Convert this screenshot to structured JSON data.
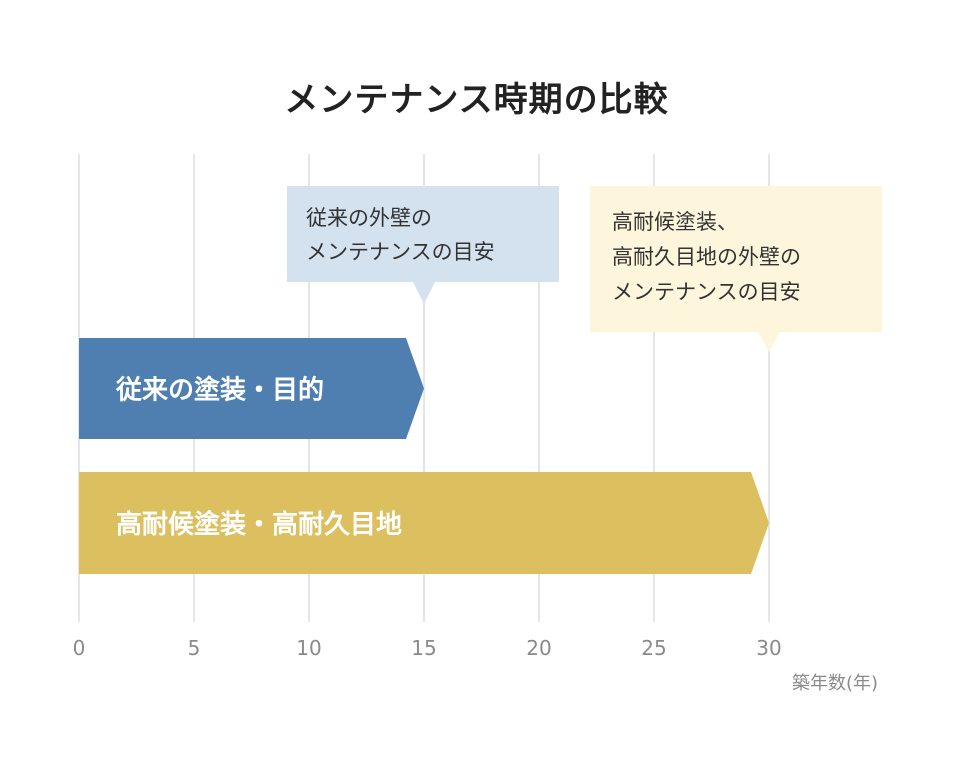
{
  "chart_data": {
    "type": "bar",
    "orientation": "horizontal",
    "title": "メンテナンス時期の比較",
    "xlabel": "築年数(年)",
    "ylabel": "",
    "xlim": [
      0,
      30
    ],
    "x_ticks": [
      "0",
      "5",
      "10",
      "15",
      "20",
      "25",
      "30"
    ],
    "grid": true,
    "series": [
      {
        "label": "従来の塗装・目的",
        "start": 0,
        "end": 15,
        "color": "#4f7fb0"
      },
      {
        "label": "高耐候塗装・高耐久目地",
        "start": 0,
        "end": 30,
        "color": "#dcbf5f"
      }
    ],
    "annotations": [
      {
        "lines": [
          "従来の外壁の",
          "メンテナンスの目安"
        ],
        "x": 15,
        "color": "#d4e1ef"
      },
      {
        "lines": [
          "高耐候塗装、",
          "高耐久目地の外壁の",
          "メンテナンスの目安"
        ],
        "x": 30,
        "color": "#fdf5dc"
      }
    ]
  }
}
